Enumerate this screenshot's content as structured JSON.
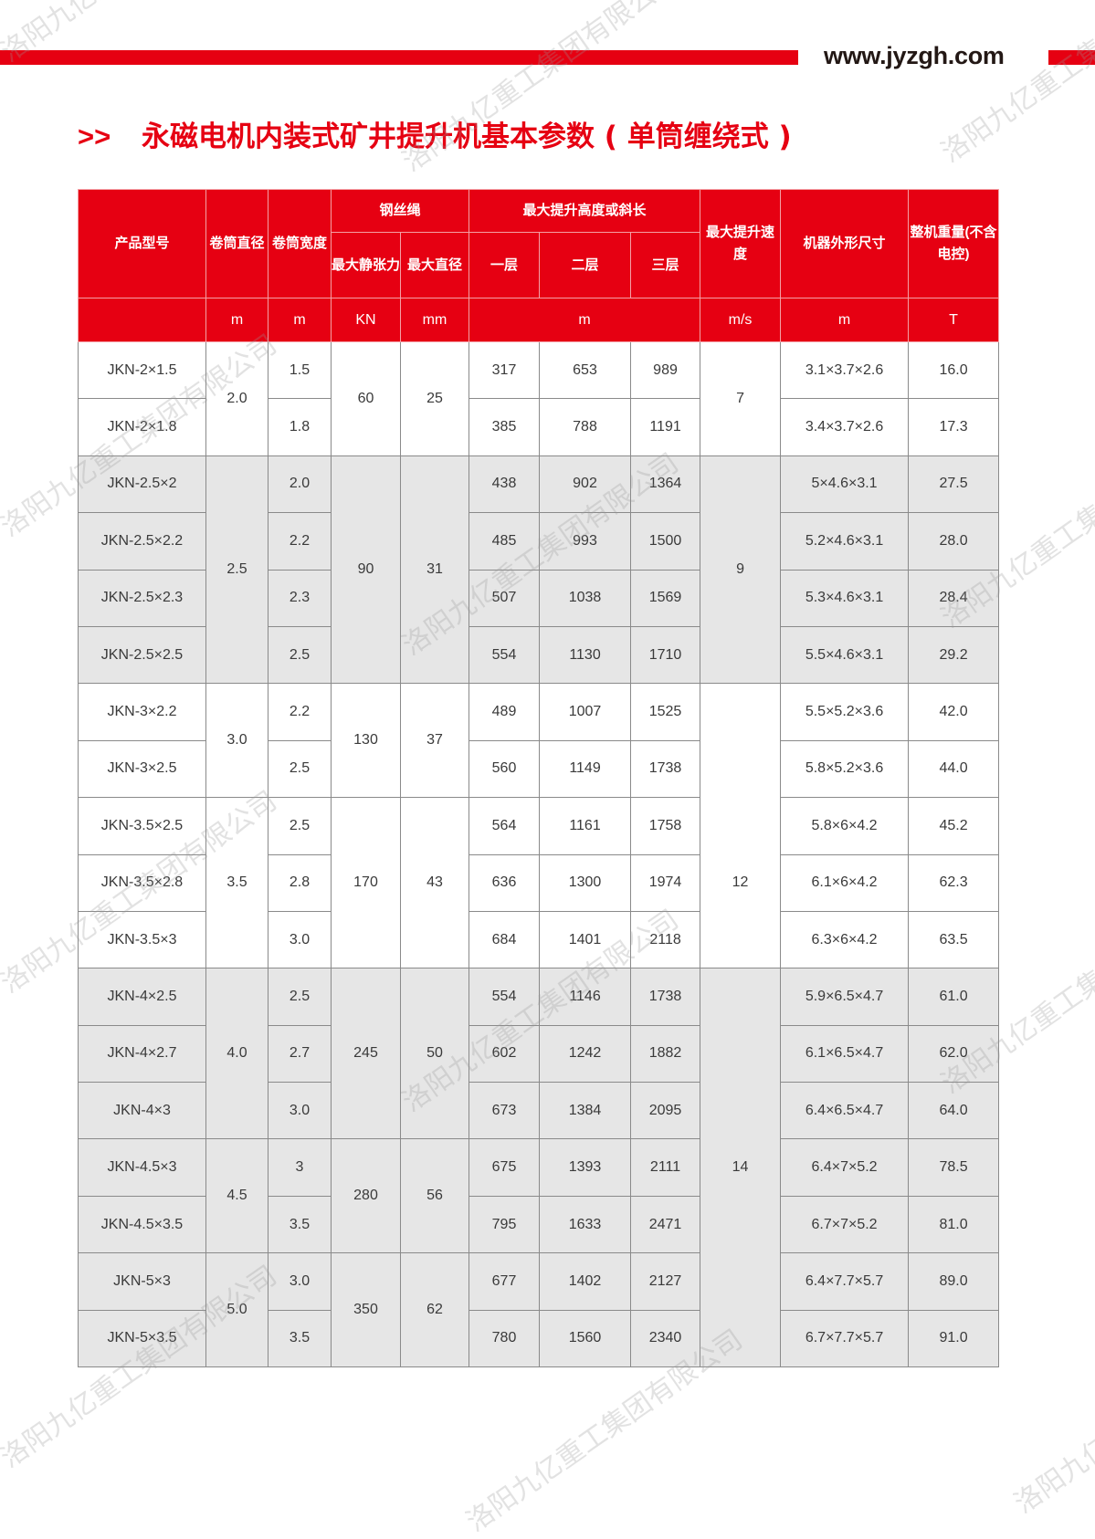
{
  "header": {
    "url": "www.jyzgh.com"
  },
  "title": {
    "arrows": ">>",
    "text": "永磁电机内装式矿井提升机基本参数 ( 单筒缠绕式 )"
  },
  "watermark": "洛阳九亿重工集团有限公司",
  "table": {
    "headers": {
      "model": "产品型号",
      "drum_diameter": "卷筒直径",
      "drum_width": "卷筒宽度",
      "wire_rope": "钢丝绳",
      "max_static_tension": "最大静张力",
      "max_rope_diameter": "最大直径",
      "max_lift": "最大提升高度或斜长",
      "layer1": "一层",
      "layer2": "二层",
      "layer3": "三层",
      "max_speed": "最大提升速度",
      "dimensions": "机器外形尺寸",
      "weight": "整机重量(不含电控)"
    },
    "units": {
      "drum_diameter": "m",
      "drum_width": "m",
      "max_static_tension": "KN",
      "max_rope_diameter": "mm",
      "max_lift": "m",
      "max_speed": "m/s",
      "dimensions": "m",
      "weight": "T"
    },
    "speed_cells": [
      {
        "value": "7",
        "rows": 2,
        "shaded": false
      },
      {
        "value": "9",
        "rows": 4,
        "shaded": true
      },
      {
        "value": "",
        "rows": 2,
        "shaded": false
      },
      {
        "value": "12",
        "rows": 3,
        "shaded": false
      },
      {
        "value": "14",
        "rows": 7,
        "shaded": true
      }
    ],
    "groups": [
      {
        "drum_diameter": "2.0",
        "max_static_tension": "60",
        "max_rope_diameter": "25",
        "shaded": false,
        "rows": [
          {
            "model": "JKN-2×1.5",
            "drum_width": "1.5",
            "layer1": "317",
            "layer2": "653",
            "layer3": "989",
            "dimensions": "3.1×3.7×2.6",
            "weight": "16.0"
          },
          {
            "model": "JKN-2×1.8",
            "drum_width": "1.8",
            "layer1": "385",
            "layer2": "788",
            "layer3": "1191",
            "dimensions": "3.4×3.7×2.6",
            "weight": "17.3"
          }
        ]
      },
      {
        "drum_diameter": "2.5",
        "max_static_tension": "90",
        "max_rope_diameter": "31",
        "shaded": true,
        "rows": [
          {
            "model": "JKN-2.5×2",
            "drum_width": "2.0",
            "layer1": "438",
            "layer2": "902",
            "layer3": "1364",
            "dimensions": "5×4.6×3.1",
            "weight": "27.5"
          },
          {
            "model": "JKN-2.5×2.2",
            "drum_width": "2.2",
            "layer1": "485",
            "layer2": "993",
            "layer3": "1500",
            "dimensions": "5.2×4.6×3.1",
            "weight": "28.0"
          },
          {
            "model": "JKN-2.5×2.3",
            "drum_width": "2.3",
            "layer1": "507",
            "layer2": "1038",
            "layer3": "1569",
            "dimensions": "5.3×4.6×3.1",
            "weight": "28.4"
          },
          {
            "model": "JKN-2.5×2.5",
            "drum_width": "2.5",
            "layer1": "554",
            "layer2": "1130",
            "layer3": "1710",
            "dimensions": "5.5×4.6×3.1",
            "weight": "29.2"
          }
        ]
      },
      {
        "drum_diameter": "3.0",
        "max_static_tension": "130",
        "max_rope_diameter": "37",
        "shaded": false,
        "rows": [
          {
            "model": "JKN-3×2.2",
            "drum_width": "2.2",
            "layer1": "489",
            "layer2": "1007",
            "layer3": "1525",
            "dimensions": "5.5×5.2×3.6",
            "weight": "42.0"
          },
          {
            "model": "JKN-3×2.5",
            "drum_width": "2.5",
            "layer1": "560",
            "layer2": "1149",
            "layer3": "1738",
            "dimensions": "5.8×5.2×3.6",
            "weight": "44.0"
          }
        ]
      },
      {
        "drum_diameter": "3.5",
        "max_static_tension": "170",
        "max_rope_diameter": "43",
        "shaded": false,
        "rows": [
          {
            "model": "JKN-3.5×2.5",
            "drum_width": "2.5",
            "layer1": "564",
            "layer2": "1161",
            "layer3": "1758",
            "dimensions": "5.8×6×4.2",
            "weight": "45.2"
          },
          {
            "model": "JKN-3.5×2.8",
            "drum_width": "2.8",
            "layer1": "636",
            "layer2": "1300",
            "layer3": "1974",
            "dimensions": "6.1×6×4.2",
            "weight": "62.3"
          },
          {
            "model": "JKN-3.5×3",
            "drum_width": "3.0",
            "layer1": "684",
            "layer2": "1401",
            "layer3": "2118",
            "dimensions": "6.3×6×4.2",
            "weight": "63.5"
          }
        ]
      },
      {
        "drum_diameter": "4.0",
        "max_static_tension": "245",
        "max_rope_diameter": "50",
        "shaded": true,
        "rows": [
          {
            "model": "JKN-4×2.5",
            "drum_width": "2.5",
            "layer1": "554",
            "layer2": "1146",
            "layer3": "1738",
            "dimensions": "5.9×6.5×4.7",
            "weight": "61.0"
          },
          {
            "model": "JKN-4×2.7",
            "drum_width": "2.7",
            "layer1": "602",
            "layer2": "1242",
            "layer3": "1882",
            "dimensions": "6.1×6.5×4.7",
            "weight": "62.0"
          },
          {
            "model": "JKN-4×3",
            "drum_width": "3.0",
            "layer1": "673",
            "layer2": "1384",
            "layer3": "2095",
            "dimensions": "6.4×6.5×4.7",
            "weight": "64.0"
          }
        ]
      },
      {
        "drum_diameter": "4.5",
        "max_static_tension": "280",
        "max_rope_diameter": "56",
        "shaded": true,
        "rows": [
          {
            "model": "JKN-4.5×3",
            "drum_width": "3",
            "layer1": "675",
            "layer2": "1393",
            "layer3": "2111",
            "dimensions": "6.4×7×5.2",
            "weight": "78.5"
          },
          {
            "model": "JKN-4.5×3.5",
            "drum_width": "3.5",
            "layer1": "795",
            "layer2": "1633",
            "layer3": "2471",
            "dimensions": "6.7×7×5.2",
            "weight": "81.0"
          }
        ]
      },
      {
        "drum_diameter": "5.0",
        "max_static_tension": "350",
        "max_rope_diameter": "62",
        "shaded": true,
        "rows": [
          {
            "model": "JKN-5×3",
            "drum_width": "3.0",
            "layer1": "677",
            "layer2": "1402",
            "layer3": "2127",
            "dimensions": "6.4×7.7×5.7",
            "weight": "89.0"
          },
          {
            "model": "JKN-5×3.5",
            "drum_width": "3.5",
            "layer1": "780",
            "layer2": "1560",
            "layer3": "2340",
            "dimensions": "6.7×7.7×5.7",
            "weight": "91.0"
          }
        ]
      }
    ]
  }
}
